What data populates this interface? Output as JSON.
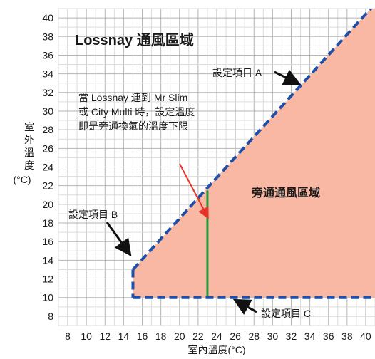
{
  "chart_data": {
    "type": "area",
    "title": "Lossnay 通風區域",
    "xlabel": "室內溫度(°C)",
    "ylabel_lines": [
      "室",
      "外",
      "溫",
      "度",
      "(°C)"
    ],
    "xlim": [
      7,
      41
    ],
    "ylim": [
      7,
      41
    ],
    "x_ticks": [
      8,
      10,
      12,
      14,
      16,
      18,
      20,
      22,
      24,
      26,
      28,
      30,
      32,
      34,
      36,
      38,
      40
    ],
    "y_ticks": [
      8,
      10,
      12,
      14,
      16,
      18,
      20,
      22,
      24,
      26,
      28,
      30,
      32,
      34,
      36,
      38,
      40
    ],
    "grid": true,
    "bypass_region": {
      "label": "旁通通風區域",
      "color": "#f9b8a4",
      "polygon": [
        [
          15,
          13
        ],
        [
          41,
          41.5
        ],
        [
          41,
          10
        ],
        [
          15,
          10
        ]
      ]
    },
    "boundaries": [
      {
        "name": "設定項目 A",
        "type": "dashed",
        "color": "#1f4fa8",
        "points": [
          [
            15,
            13
          ],
          [
            41,
            41.5
          ]
        ]
      },
      {
        "name": "設定項目 B",
        "type": "dashed",
        "color": "#1f4fa8",
        "points": [
          [
            15,
            13
          ],
          [
            15,
            10
          ]
        ]
      },
      {
        "name": "設定項目 C",
        "type": "dashed",
        "color": "#1f4fa8",
        "points": [
          [
            15,
            10
          ],
          [
            41,
            10
          ]
        ]
      }
    ],
    "green_line": {
      "color": "#1e9e3a",
      "points": [
        [
          23,
          21.5
        ],
        [
          23,
          10
        ]
      ]
    },
    "annotations": {
      "setting_a": "設定項目 A",
      "setting_b": "設定項目 B",
      "setting_c": "設定項目 C",
      "note_lines": [
        "當 Lossnay 連到 Mr Slim",
        "或 City Multi 時，設定溫度",
        "即是旁通換氣的溫度下限"
      ]
    },
    "arrow_colors": {
      "setting": "#111111",
      "note": "#e5332a"
    }
  }
}
